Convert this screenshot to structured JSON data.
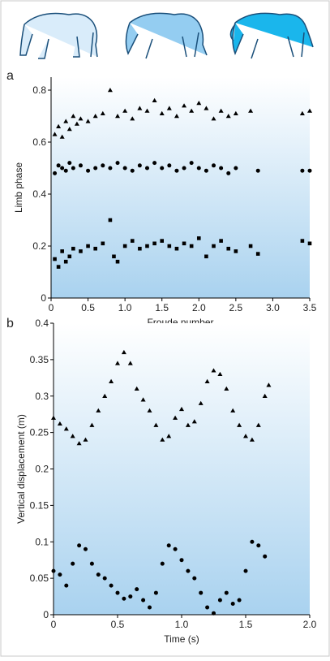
{
  "chart_data": [
    {
      "type": "scatter",
      "panel_label": "a",
      "xlabel": "Froude number",
      "ylabel": "Limb phase",
      "xlim": [
        0,
        3.5
      ],
      "ylim": [
        0,
        0.85
      ],
      "xticks": [
        0,
        0.5,
        {
          "value": 1,
          "label": "1.0"
        },
        1.5,
        {
          "value": 2,
          "label": "2.0"
        },
        2.5,
        {
          "value": 3,
          "label": "3.0"
        },
        3.5
      ],
      "yticks": [
        0,
        0.2,
        0.4,
        0.6,
        0.8
      ],
      "series": [
        {
          "marker": "triangle",
          "color": "#000000",
          "x": [
            0.05,
            0.1,
            0.15,
            0.2,
            0.25,
            0.3,
            0.35,
            0.4,
            0.5,
            0.6,
            0.7,
            0.8,
            0.9,
            1.0,
            1.1,
            1.2,
            1.3,
            1.4,
            1.5,
            1.6,
            1.7,
            1.8,
            1.9,
            2.0,
            2.1,
            2.2,
            2.3,
            2.4,
            2.5,
            2.7,
            3.4,
            3.5
          ],
          "values": [
            0.63,
            0.66,
            0.62,
            0.68,
            0.65,
            0.7,
            0.67,
            0.69,
            0.68,
            0.7,
            0.71,
            0.8,
            0.7,
            0.72,
            0.69,
            0.73,
            0.72,
            0.76,
            0.71,
            0.73,
            0.7,
            0.74,
            0.72,
            0.75,
            0.73,
            0.69,
            0.72,
            0.7,
            0.71,
            0.72,
            0.71,
            0.72
          ]
        },
        {
          "marker": "circle",
          "color": "#000000",
          "x": [
            0.05,
            0.1,
            0.15,
            0.2,
            0.25,
            0.3,
            0.4,
            0.5,
            0.6,
            0.7,
            0.8,
            0.9,
            1.0,
            1.1,
            1.2,
            1.3,
            1.4,
            1.5,
            1.6,
            1.7,
            1.8,
            1.9,
            2.0,
            2.1,
            2.2,
            2.3,
            2.4,
            2.5,
            2.8,
            3.4,
            3.5
          ],
          "values": [
            0.48,
            0.51,
            0.5,
            0.49,
            0.52,
            0.5,
            0.51,
            0.49,
            0.5,
            0.51,
            0.5,
            0.52,
            0.5,
            0.49,
            0.51,
            0.5,
            0.52,
            0.5,
            0.51,
            0.49,
            0.5,
            0.52,
            0.5,
            0.49,
            0.51,
            0.5,
            0.48,
            0.5,
            0.49,
            0.49,
            0.49
          ]
        },
        {
          "marker": "square",
          "color": "#000000",
          "x": [
            0.05,
            0.1,
            0.15,
            0.2,
            0.25,
            0.3,
            0.4,
            0.5,
            0.6,
            0.7,
            0.8,
            0.85,
            0.9,
            1.0,
            1.1,
            1.2,
            1.3,
            1.4,
            1.5,
            1.6,
            1.7,
            1.8,
            1.9,
            2.0,
            2.1,
            2.2,
            2.3,
            2.4,
            2.5,
            2.7,
            2.8,
            3.4,
            3.5
          ],
          "values": [
            0.15,
            0.12,
            0.18,
            0.14,
            0.16,
            0.19,
            0.18,
            0.2,
            0.19,
            0.21,
            0.3,
            0.16,
            0.14,
            0.2,
            0.22,
            0.19,
            0.2,
            0.21,
            0.22,
            0.2,
            0.19,
            0.21,
            0.2,
            0.23,
            0.16,
            0.2,
            0.22,
            0.19,
            0.18,
            0.2,
            0.17,
            0.22,
            0.21
          ]
        }
      ]
    },
    {
      "type": "scatter",
      "panel_label": "b",
      "xlabel": "Time (s)",
      "ylabel": "Vertical displacement (m)",
      "xlim": [
        0,
        2
      ],
      "ylim": [
        0,
        0.4
      ],
      "xticks": [
        0,
        0.5,
        {
          "value": 1,
          "label": "1.0"
        },
        1.5,
        {
          "value": 2,
          "label": "2.0"
        }
      ],
      "yticks": [
        0,
        0.05,
        0.1,
        0.15,
        0.2,
        0.25,
        0.3,
        0.35,
        0.4
      ],
      "series": [
        {
          "marker": "triangle",
          "color": "#000000",
          "x": [
            0,
            0.05,
            0.1,
            0.15,
            0.2,
            0.25,
            0.3,
            0.35,
            0.4,
            0.45,
            0.5,
            0.55,
            0.6,
            0.65,
            0.7,
            0.75,
            0.8,
            0.85,
            0.9,
            0.95,
            1.0,
            1.05,
            1.1,
            1.15,
            1.2,
            1.25,
            1.3,
            1.35,
            1.4,
            1.45,
            1.5,
            1.55,
            1.6,
            1.65,
            1.68
          ],
          "values": [
            0.27,
            0.262,
            0.255,
            0.245,
            0.235,
            0.24,
            0.26,
            0.28,
            0.3,
            0.32,
            0.345,
            0.36,
            0.345,
            0.31,
            0.295,
            0.28,
            0.26,
            0.24,
            0.245,
            0.27,
            0.282,
            0.26,
            0.265,
            0.29,
            0.32,
            0.335,
            0.33,
            0.31,
            0.28,
            0.26,
            0.245,
            0.24,
            0.26,
            0.3,
            0.315
          ]
        },
        {
          "marker": "circle",
          "color": "#000000",
          "x": [
            0,
            0.05,
            0.1,
            0.15,
            0.2,
            0.25,
            0.3,
            0.35,
            0.4,
            0.45,
            0.5,
            0.55,
            0.6,
            0.65,
            0.7,
            0.75,
            0.8,
            0.85,
            0.9,
            0.95,
            1.0,
            1.05,
            1.1,
            1.15,
            1.2,
            1.25,
            1.3,
            1.35,
            1.4,
            1.45,
            1.5,
            1.55,
            1.6,
            1.65
          ],
          "values": [
            0.06,
            0.055,
            0.04,
            0.07,
            0.095,
            0.09,
            0.07,
            0.055,
            0.05,
            0.04,
            0.03,
            0.022,
            0.025,
            0.035,
            0.02,
            0.01,
            0.03,
            0.07,
            0.095,
            0.09,
            0.075,
            0.06,
            0.05,
            0.03,
            0.01,
            0.002,
            0.02,
            0.03,
            0.015,
            0.02,
            0.06,
            0.1,
            0.095,
            0.08
          ]
        }
      ]
    }
  ]
}
